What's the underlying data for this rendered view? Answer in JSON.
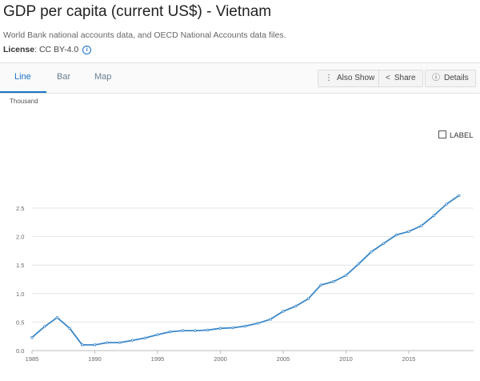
{
  "header": {
    "title": "GDP per capita (current US$) - Vietnam",
    "subtitle": "World Bank national accounts data, and OECD National Accounts data files.",
    "license_label": "License",
    "license_value": ": CC BY-4.0"
  },
  "tabs": [
    {
      "label": "Line",
      "active": true
    },
    {
      "label": "Bar",
      "active": false
    },
    {
      "label": "Map",
      "active": false
    }
  ],
  "toolbar": {
    "also_show": "Also Show",
    "share": "Share",
    "details": "Details"
  },
  "label_toggle": "LABEL",
  "colors": {
    "accent": "#1a73c9",
    "line": "#3a87c8"
  },
  "chart_data": {
    "type": "line",
    "y_unit_label": "Thousand",
    "ylim": [
      0,
      2.8
    ],
    "xlim": [
      1985,
      2020
    ],
    "y_ticks": [
      "0.0",
      "0.5",
      "1.0",
      "1.5",
      "2.0",
      "2.5"
    ],
    "x_ticks": [
      "1985",
      "1990",
      "1995",
      "2000",
      "2005",
      "2010",
      "2015"
    ],
    "grid": true,
    "series": [
      {
        "x": [
          1985,
          1986,
          1987,
          1988,
          1989,
          1990,
          1991,
          1992,
          1993,
          1994,
          1995,
          1996,
          1997,
          1998,
          1999,
          2000,
          2001,
          2002,
          2003,
          2004,
          2005,
          2006,
          2007,
          2008,
          2009,
          2010,
          2011,
          2012,
          2013,
          2014,
          2015,
          2016,
          2017,
          2018,
          2019
        ],
        "y": [
          0.23,
          0.42,
          0.58,
          0.39,
          0.1,
          0.1,
          0.14,
          0.14,
          0.18,
          0.22,
          0.28,
          0.33,
          0.35,
          0.35,
          0.36,
          0.39,
          0.4,
          0.43,
          0.48,
          0.55,
          0.69,
          0.78,
          0.91,
          1.15,
          1.21,
          1.32,
          1.52,
          1.73,
          1.88,
          2.03,
          2.09,
          2.19,
          2.37,
          2.57,
          2.72
        ]
      }
    ]
  }
}
